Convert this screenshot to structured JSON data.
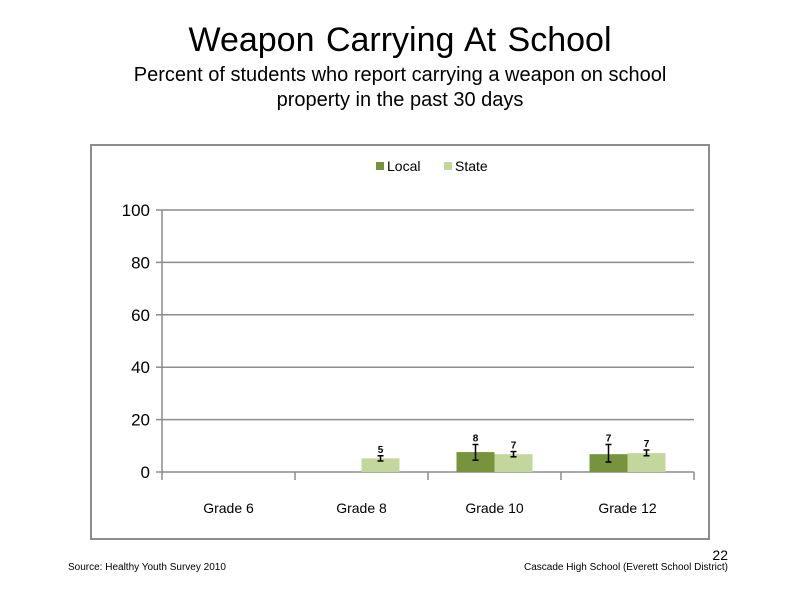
{
  "slide": {
    "title": "Weapon Carrying At School",
    "subtitle": "Percent of students who report carrying a weapon on school property in the past 30 days",
    "source": "Source: Healthy Youth Survey 2010",
    "school": "Cascade High School (Everett School District)",
    "page_number": "22"
  },
  "chart_data": {
    "type": "bar",
    "categories": [
      "Grade 6",
      "Grade 8",
      "Grade 10",
      "Grade 12"
    ],
    "series": [
      {
        "name": "Local",
        "color": "#77933c",
        "values": [
          null,
          null,
          7.6,
          6.8
        ],
        "labels": [
          "",
          "",
          "8",
          "7"
        ],
        "error": [
          null,
          null,
          [
            4.5,
            10.5
          ],
          [
            3.8,
            10.5
          ]
        ]
      },
      {
        "name": "State",
        "color": "#c3d69b",
        "values": [
          null,
          5.2,
          6.8,
          7.2
        ],
        "labels": [
          "",
          "5",
          "7",
          "7"
        ],
        "error": [
          null,
          [
            4.2,
            6.2
          ],
          [
            5.8,
            7.8
          ],
          [
            6.2,
            8.4
          ]
        ]
      }
    ],
    "yticks": [
      "0",
      "20",
      "40",
      "60",
      "80",
      "100"
    ],
    "ylim": [
      0,
      100
    ],
    "grid": true,
    "legend": "top-center"
  }
}
